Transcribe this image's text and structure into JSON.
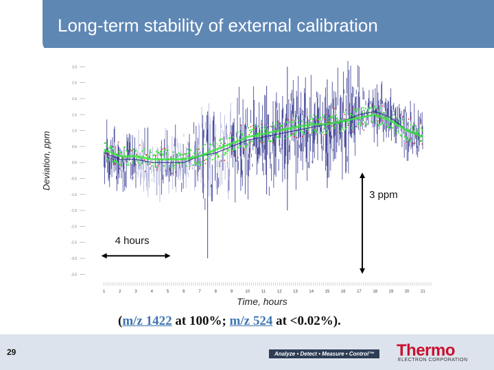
{
  "slide": {
    "title": "Long-term stability of external calibration",
    "number": "29",
    "note": {
      "open": "(",
      "mz1": "m/z 1422",
      "mid": " at 100%; ",
      "mz2": "m/z 524",
      "close": " at <0.02%)."
    }
  },
  "footer": {
    "tagline": "Analyze • Detect • Measure • Control™",
    "logo": "Thermo",
    "logo_sub": "ELECTRON CORPORATION"
  },
  "colors": {
    "header": "#5f87b4",
    "series_dark": "#2b2f8a",
    "series_light": "#a9aed8",
    "series_green": "#39e639",
    "series_red": "#d42020"
  },
  "chart_data": {
    "type": "line",
    "title": "",
    "xlabel": "Time, hours",
    "ylabel": "Deviation, ppm",
    "xlim": [
      0.5,
      21.5
    ],
    "x_ticks": [
      "1",
      "2",
      "3",
      "4",
      "5",
      "6",
      "7",
      "8",
      "9",
      "10",
      "11",
      "12",
      "13",
      "14",
      "15",
      "16",
      "17",
      "18",
      "19",
      "20",
      "21"
    ],
    "ylim": [
      -3.6,
      3.2
    ],
    "y_ticks": [
      "3.0",
      "2.5",
      "2.0",
      "1.5",
      "1.0",
      "0.5",
      "0.0",
      "-0.5",
      "-1.0",
      "-1.5",
      "-2.0",
      "-2.5",
      "-3.0",
      "-3.5"
    ],
    "grid": false,
    "series": [
      {
        "color": "#2b2f8a",
        "x": [
          1,
          2,
          3,
          4,
          5,
          6,
          7,
          8,
          9,
          10,
          11,
          12,
          13,
          14,
          15,
          16,
          17,
          18,
          19,
          20,
          21
        ],
        "y": [
          0.3,
          0.1,
          0.1,
          0.0,
          0.0,
          0.0,
          0.2,
          0.3,
          0.5,
          0.7,
          0.8,
          0.9,
          1.0,
          1.1,
          1.2,
          1.3,
          1.5,
          1.6,
          1.4,
          1.0,
          0.8
        ]
      },
      {
        "color": "#39e639",
        "x": [
          1,
          2,
          3,
          4,
          5,
          6,
          7,
          8,
          9,
          10,
          11,
          12,
          13,
          14,
          15,
          16,
          17,
          18,
          19,
          20,
          21
        ],
        "y": [
          0.4,
          0.2,
          0.2,
          0.1,
          0.1,
          0.1,
          0.2,
          0.4,
          0.6,
          0.8,
          0.9,
          1.0,
          1.1,
          1.2,
          1.2,
          1.3,
          1.4,
          1.5,
          1.3,
          1.0,
          0.8
        ]
      }
    ],
    "annotations": [
      {
        "text": "4 hours",
        "x_from": 1,
        "x_to": 5,
        "y": -2.6
      },
      {
        "text": "3 ppm",
        "x": 17.2,
        "y_from": -0.4,
        "y_to": -3.4
      }
    ]
  }
}
